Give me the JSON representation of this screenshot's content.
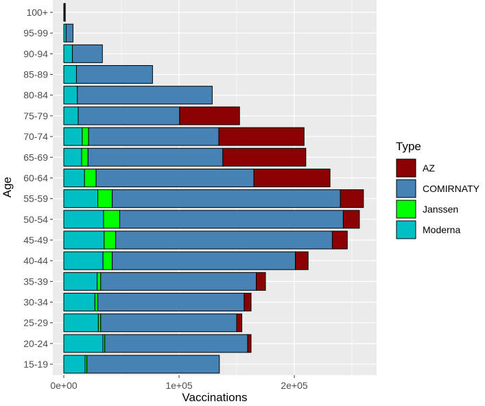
{
  "chart_data": {
    "type": "bar",
    "orientation": "horizontal",
    "stacked": true,
    "xlabel": "Vaccinations",
    "ylabel": "Age",
    "xlim": [
      -10000,
      270000
    ],
    "x_ticks": [
      0,
      100000,
      200000
    ],
    "x_tick_labels": [
      "0e+00",
      "1e+05",
      "2e+05"
    ],
    "grid": true,
    "legend": {
      "title": "Type",
      "position": "right"
    },
    "categories": [
      "15-19",
      "20-24",
      "25-29",
      "30-34",
      "35-39",
      "40-44",
      "45-49",
      "50-54",
      "55-59",
      "60-64",
      "65-69",
      "70-74",
      "75-79",
      "80-84",
      "85-89",
      "90-94",
      "95-99",
      "100+"
    ],
    "series": [
      {
        "name": "Moderna",
        "color": "#00BFC4",
        "values": [
          18500,
          34000,
          30000,
          27000,
          29000,
          34000,
          35000,
          34500,
          29500,
          18000,
          15500,
          16000,
          12500,
          11800,
          11000,
          7500,
          2000,
          500
        ]
      },
      {
        "name": "Janssen",
        "color": "#00FF00",
        "values": [
          1500,
          1500,
          2000,
          2500,
          3000,
          8000,
          10000,
          14000,
          12500,
          10000,
          5500,
          5500,
          0,
          0,
          0,
          0,
          0,
          0
        ]
      },
      {
        "name": "COMIRNATY",
        "color": "#4682B4",
        "values": [
          115000,
          124000,
          118000,
          127000,
          135000,
          159000,
          188000,
          194000,
          198000,
          137000,
          117000,
          113000,
          88000,
          117000,
          66000,
          26000,
          6000,
          800
        ]
      },
      {
        "name": "AZ",
        "color": "#8B0000",
        "values": [
          0,
          3000,
          4500,
          6000,
          8000,
          11000,
          13000,
          14000,
          20000,
          66000,
          72000,
          74000,
          52000,
          0,
          0,
          0,
          0,
          0
        ]
      }
    ],
    "legend_order": [
      "AZ",
      "COMIRNATY",
      "Janssen",
      "Moderna"
    ]
  }
}
